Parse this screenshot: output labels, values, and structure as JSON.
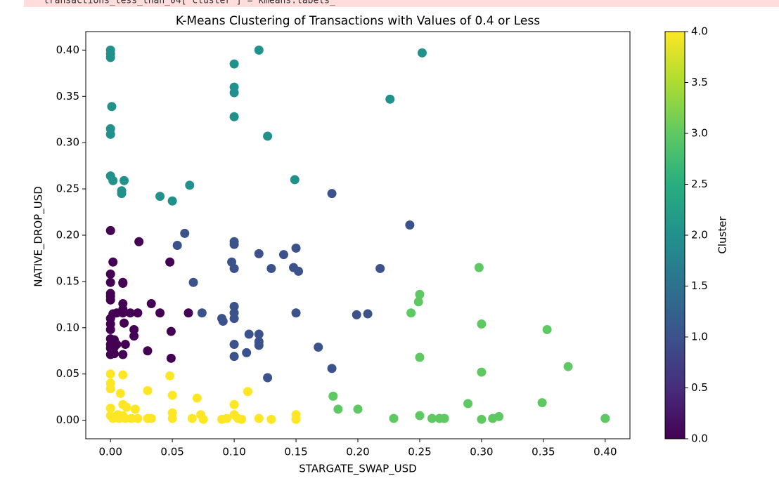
{
  "code_line": "transactions_less_than_04['cluster'] = kmeans.labels_",
  "chart_data": {
    "type": "scatter",
    "title": "K-Means Clustering of Transactions with Values of 0.4 or Less",
    "xlabel": "STARGATE_SWAP_USD",
    "ylabel": "NATIVE_DROP_USD",
    "colorbar_label": "Cluster",
    "colormap": [
      "#440154",
      "#472d7b",
      "#3b528b",
      "#2c728e",
      "#21918c",
      "#28ae80",
      "#5ec962",
      "#addc30",
      "#fde725"
    ],
    "xlim": [
      -0.02,
      0.42
    ],
    "ylim": [
      -0.02,
      0.42
    ],
    "clim": [
      0,
      4
    ],
    "xticks": [
      {
        "value": 0,
        "label": "0.00"
      },
      {
        "value": 0.05,
        "label": "0.05"
      },
      {
        "value": 0.1,
        "label": "0.10"
      },
      {
        "value": 0.15,
        "label": "0.15"
      },
      {
        "value": 0.2,
        "label": "0.20"
      },
      {
        "value": 0.25,
        "label": "0.25"
      },
      {
        "value": 0.3,
        "label": "0.30"
      },
      {
        "value": 0.35,
        "label": "0.35"
      },
      {
        "value": 0.4,
        "label": "0.40"
      }
    ],
    "yticks": [
      {
        "value": 0,
        "label": "0.00"
      },
      {
        "value": 0.05,
        "label": "0.05"
      },
      {
        "value": 0.1,
        "label": "0.10"
      },
      {
        "value": 0.15,
        "label": "0.15"
      },
      {
        "value": 0.2,
        "label": "0.20"
      },
      {
        "value": 0.25,
        "label": "0.25"
      },
      {
        "value": 0.3,
        "label": "0.30"
      },
      {
        "value": 0.35,
        "label": "0.35"
      },
      {
        "value": 0.4,
        "label": "0.40"
      }
    ],
    "cticks": [
      {
        "value": 0,
        "label": "0.0"
      },
      {
        "value": 0.5,
        "label": "0.5"
      },
      {
        "value": 1,
        "label": "1.0"
      },
      {
        "value": 1.5,
        "label": "1.5"
      },
      {
        "value": 2,
        "label": "2.0"
      },
      {
        "value": 2.5,
        "label": "2.5"
      },
      {
        "value": 3,
        "label": "3.0"
      },
      {
        "value": 3.5,
        "label": "3.5"
      },
      {
        "value": 4,
        "label": "4.0"
      }
    ],
    "x": [
      0,
      0,
      0,
      0.12,
      0.252,
      0.1,
      0.1,
      0.1,
      0.001,
      0.226,
      0.1,
      0,
      0,
      0.127,
      0,
      0.002,
      0.011,
      0.149,
      0.064,
      0.009,
      0.009,
      0.04,
      0.05,
      0.179,
      0.242,
      0.06,
      0.054,
      0.1,
      0.1,
      0.12,
      0.14,
      0.15,
      0.098,
      0.1,
      0.13,
      0.148,
      0.152,
      0.218,
      0.067,
      0.1,
      0.1,
      0.074,
      0.15,
      0.199,
      0.208,
      0.09,
      0.091,
      0.1,
      0.112,
      0.12,
      0.12,
      0.12,
      0.1,
      0.11,
      0.1,
      0.168,
      0.179,
      0.127,
      0,
      0.023,
      0.002,
      0.048,
      0,
      0,
      0.01,
      0.01,
      0,
      0,
      0,
      0.01,
      0.033,
      0.01,
      0.002,
      0.005,
      0.01,
      0.016,
      0.022,
      0.04,
      0.063,
      0,
      0,
      0.011,
      0,
      0.019,
      0.049,
      0.019,
      0,
      0.003,
      0,
      0.005,
      0.012,
      0,
      0.003,
      0.03,
      0,
      0.01,
      0.003,
      0.049,
      0.298,
      0.25,
      0.249,
      0.243,
      0.3,
      0.353,
      0.25,
      0.37,
      0.3,
      0.18,
      0.184,
      0.2,
      0.289,
      0.349,
      0.229,
      0.25,
      0.26,
      0.266,
      0.27,
      0.3,
      0.309,
      0.314,
      0.4,
      0,
      0.01,
      0.048,
      0,
      0,
      0.008,
      0.03,
      0.111,
      0.05,
      0.07,
      0.1,
      0.01,
      0.013,
      0,
      0.02,
      0.006,
      0.05,
      0.073,
      0.15,
      0.002,
      0.007,
      0.012,
      0.017,
      0.022,
      0.03,
      0.033,
      0.05,
      0.066,
      0.075,
      0.09,
      0.094,
      0.103,
      0.106,
      0.12,
      0.13,
      0.15,
      0,
      0.01,
      0.1
    ],
    "y": [
      0.4,
      0.396,
      0.392,
      0.4,
      0.397,
      0.385,
      0.36,
      0.354,
      0.339,
      0.347,
      0.328,
      0.315,
      0.309,
      0.307,
      0.264,
      0.259,
      0.259,
      0.26,
      0.254,
      0.248,
      0.245,
      0.242,
      0.237,
      0.245,
      0.211,
      0.202,
      0.189,
      0.193,
      0.19,
      0.18,
      0.179,
      0.186,
      0.171,
      0.164,
      0.164,
      0.165,
      0.161,
      0.164,
      0.149,
      0.123,
      0.116,
      0.116,
      0.116,
      0.114,
      0.115,
      0.11,
      0.107,
      0.11,
      0.093,
      0.093,
      0.085,
      0.081,
      0.082,
      0.073,
      0.069,
      0.079,
      0.056,
      0.046,
      0.205,
      0.193,
      0.171,
      0.171,
      0.158,
      0.149,
      0.149,
      0.148,
      0.137,
      0.134,
      0.13,
      0.126,
      0.126,
      0.12,
      0.115,
      0.116,
      0.116,
      0.116,
      0.116,
      0.116,
      0.116,
      0.11,
      0.104,
      0.105,
      0.098,
      0.098,
      0.096,
      0.091,
      0.088,
      0.087,
      0.082,
      0.082,
      0.082,
      0.078,
      0.079,
      0.075,
      0.071,
      0.071,
      0.072,
      0.067,
      0.165,
      0.136,
      0.128,
      0.116,
      0.104,
      0.098,
      0.068,
      0.058,
      0.052,
      0.026,
      0.012,
      0.012,
      0.018,
      0.019,
      0.002,
      0.005,
      0.002,
      0.002,
      0.002,
      0.001,
      0.002,
      0.004,
      0.002,
      0.05,
      0.049,
      0.048,
      0.04,
      0.034,
      0.029,
      0.032,
      0.031,
      0.027,
      0.024,
      0.017,
      0.017,
      0.014,
      0.013,
      0.012,
      0.006,
      0.008,
      0.006,
      0.006,
      0.002,
      0.002,
      0.002,
      0.002,
      0.002,
      0.002,
      0.002,
      0.002,
      0.002,
      0.001,
      0.001,
      0.002,
      0.002,
      0.001,
      0.002,
      0.001,
      0.001,
      0.005,
      0.005,
      0.006
    ],
    "cluster": [
      2,
      2,
      2,
      2,
      2,
      2,
      2,
      2,
      2,
      2,
      2,
      2,
      2,
      2,
      2,
      2,
      2,
      2,
      2,
      2,
      2,
      2,
      2,
      1,
      1,
      1,
      1,
      1,
      1,
      1,
      1,
      1,
      1,
      1,
      1,
      1,
      1,
      1,
      1,
      1,
      1,
      1,
      1,
      1,
      1,
      1,
      1,
      1,
      1,
      1,
      1,
      1,
      1,
      1,
      1,
      1,
      1,
      1,
      0,
      0,
      0,
      0,
      0,
      0,
      0,
      0,
      0,
      0,
      0,
      0,
      0,
      0,
      0,
      0,
      0,
      0,
      0,
      0,
      0,
      0,
      0,
      0,
      0,
      0,
      0,
      0,
      0,
      0,
      0,
      0,
      0,
      0,
      0,
      0,
      0,
      0,
      0,
      0,
      3,
      3,
      3,
      3,
      3,
      3,
      3,
      3,
      3,
      3,
      3,
      3,
      3,
      3,
      3,
      3,
      3,
      3,
      3,
      3,
      3,
      3,
      3,
      4,
      4,
      4,
      4,
      4,
      4,
      4,
      4,
      4,
      4,
      4,
      4,
      4,
      4,
      4,
      4,
      4,
      4,
      4,
      4,
      4,
      4,
      4,
      4,
      4,
      4,
      4,
      4,
      4,
      4,
      4,
      4,
      4,
      4,
      4,
      4,
      4,
      4,
      4
    ]
  }
}
